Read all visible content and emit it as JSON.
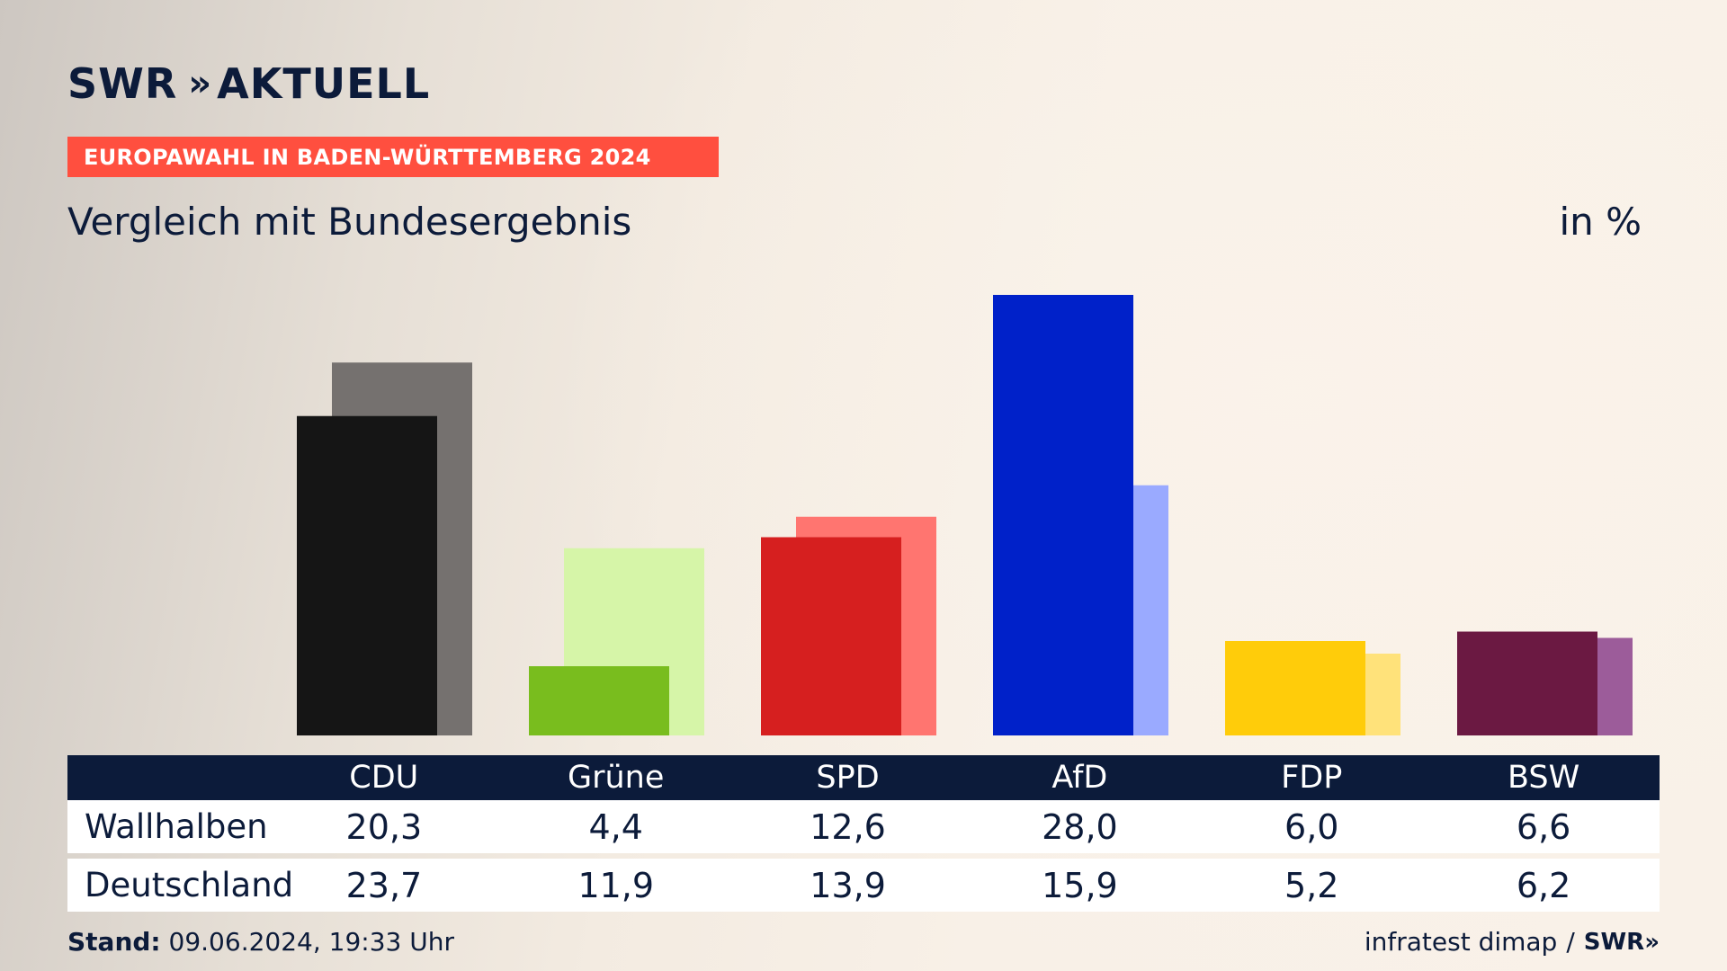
{
  "brand": {
    "logo_text": "SWR",
    "logo_chevrons": "»",
    "logo_word": "AKTUELL"
  },
  "banner": "EUROPAWAHL IN BADEN-WÜRTTEMBERG 2024",
  "subtitle": "Vergleich mit Bundesergebnis",
  "unit": "in %",
  "table": {
    "rows": [
      {
        "label": "Wallhalben",
        "values": [
          "20,3",
          "4,4",
          "12,6",
          "28,0",
          "6,0",
          "6,6"
        ]
      },
      {
        "label": "Deutschland",
        "values": [
          "23,7",
          "11,9",
          "13,9",
          "15,9",
          "5,2",
          "6,2"
        ]
      }
    ]
  },
  "footer": {
    "stand_label": "Stand:",
    "stand_value": "09.06.2024, 19:33 Uhr",
    "source": "infratest dimap",
    "separator": "/",
    "source_logo": "SWR»"
  },
  "chart_data": {
    "type": "bar",
    "categories": [
      "CDU",
      "Grüne",
      "SPD",
      "AfD",
      "FDP",
      "BSW"
    ],
    "series": [
      {
        "name": "Wallhalben",
        "values": [
          20.3,
          4.4,
          12.6,
          28.0,
          6.0,
          6.6
        ],
        "colors": [
          "#151515",
          "#79bd1e",
          "#d61f1f",
          "#0021c9",
          "#ffcc0a",
          "#6b1942"
        ]
      },
      {
        "name": "Deutschland",
        "values": [
          23.7,
          11.9,
          13.9,
          15.9,
          5.2,
          6.2
        ],
        "colors": [
          "#75716f",
          "#d6f5a8",
          "#ff7570",
          "#9aaaff",
          "ffe27a",
          "#9c5c9a"
        ]
      }
    ],
    "ylim": [
      0,
      28.0
    ]
  }
}
